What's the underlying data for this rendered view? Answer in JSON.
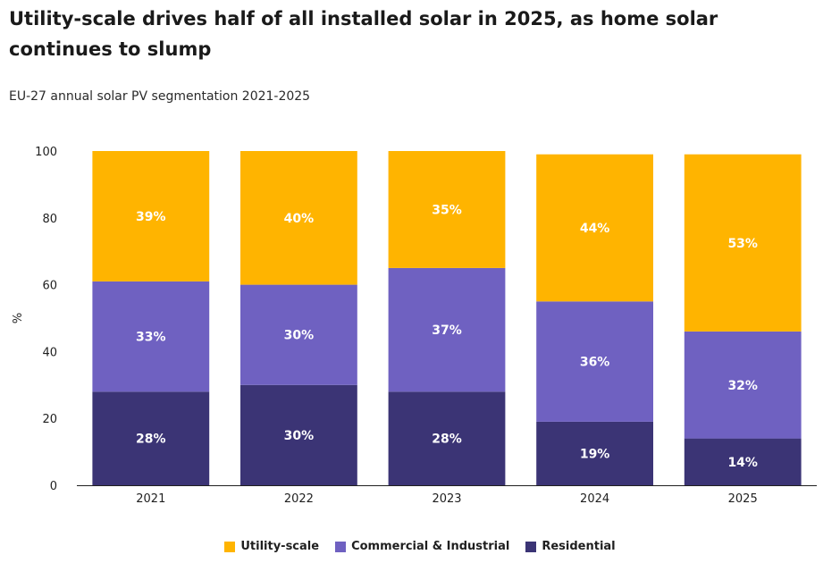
{
  "chart_data": {
    "type": "bar",
    "stacked": true,
    "title": "Utility-scale drives half of all installed solar in 2025, as home solar continues to slump",
    "subtitle": "EU-27 annual solar PV segmentation 2021-2025",
    "xlabel": "",
    "ylabel": "%",
    "ylim": [
      0,
      100
    ],
    "yticks": [
      0,
      20,
      40,
      60,
      80,
      100
    ],
    "grid": false,
    "legend_position": "bottom",
    "categories": [
      "2021",
      "2022",
      "2023",
      "2024",
      "2025"
    ],
    "series": [
      {
        "name": "Residential",
        "color": "#3b3475",
        "values": [
          28,
          30,
          28,
          19,
          14
        ],
        "labels": [
          "28%",
          "30%",
          "28%",
          "19%",
          "14%"
        ]
      },
      {
        "name": "Commercial & Industrial",
        "color": "#6f61c1",
        "values": [
          33,
          30,
          37,
          36,
          32
        ],
        "labels": [
          "33%",
          "30%",
          "37%",
          "36%",
          "32%"
        ]
      },
      {
        "name": "Utility-scale",
        "color": "#ffb400",
        "values": [
          39,
          40,
          35,
          44,
          53
        ],
        "labels": [
          "39%",
          "40%",
          "35%",
          "44%",
          "53%"
        ]
      }
    ],
    "legend_order": [
      "Utility-scale",
      "Commercial & Industrial",
      "Residential"
    ]
  }
}
